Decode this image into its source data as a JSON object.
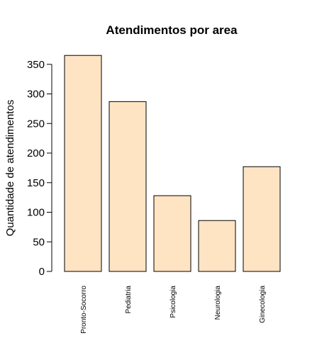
{
  "chart_data": {
    "type": "bar",
    "title": "Atendimentos por area",
    "xlabel": "",
    "ylabel": "Quantidade de atendimentos",
    "categories": [
      "Pronto-Socorro",
      "Pediatria",
      "Psicologia",
      "Neurologia",
      "Ginecologia"
    ],
    "values": [
      365,
      287,
      128,
      86,
      177
    ],
    "ylim": [
      0,
      350
    ],
    "yticks": [
      "0",
      "50",
      "100",
      "150",
      "200",
      "250",
      "300",
      "350"
    ],
    "bar_color": "#FFE4C4",
    "grid": false,
    "legend": "none"
  }
}
